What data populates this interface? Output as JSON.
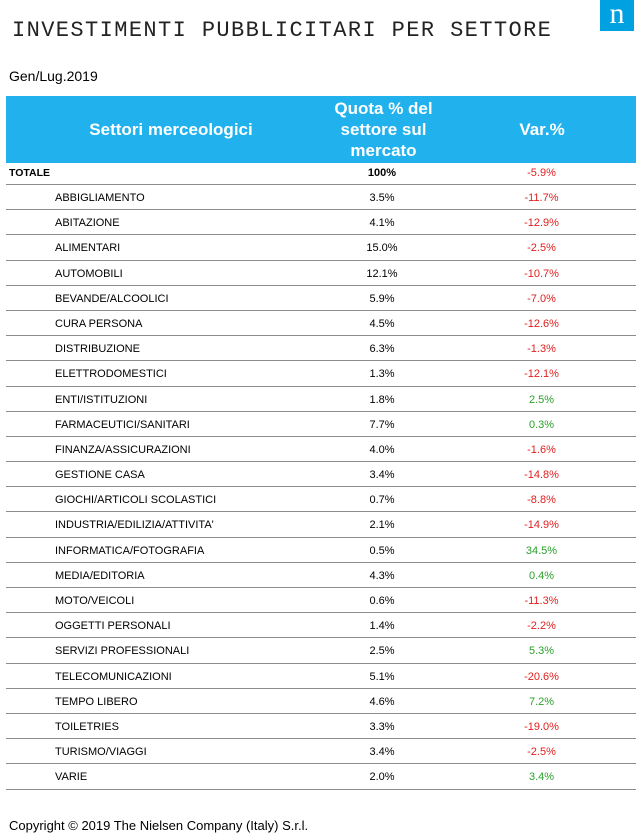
{
  "title": "INVESTIMENTI PUBBLICITARI PER SETTORE",
  "logo_text": "n",
  "period": "Gen/Lug.2019",
  "colors": {
    "header_bg": "#21b2ee",
    "negative": "#e02020",
    "positive": "#2aa02a",
    "logo_bg": "#00a1e0"
  },
  "table": {
    "headers": {
      "sector": "Settori merceologici",
      "share": "Quota % del settore sul mercato",
      "var": "Var.%"
    },
    "total": {
      "name": "TOTALE",
      "share": "100%",
      "var": "-5.9%"
    },
    "rows": [
      {
        "name": "ABBIGLIAMENTO",
        "share": "3.5%",
        "var": "-11.7%"
      },
      {
        "name": "ABITAZIONE",
        "share": "4.1%",
        "var": "-12.9%"
      },
      {
        "name": "ALIMENTARI",
        "share": "15.0%",
        "var": "-2.5%"
      },
      {
        "name": "AUTOMOBILI",
        "share": "12.1%",
        "var": "-10.7%"
      },
      {
        "name": "BEVANDE/ALCOOLICI",
        "share": "5.9%",
        "var": "-7.0%"
      },
      {
        "name": "CURA PERSONA",
        "share": "4.5%",
        "var": "-12.6%"
      },
      {
        "name": "DISTRIBUZIONE",
        "share": "6.3%",
        "var": "-1.3%"
      },
      {
        "name": "ELETTRODOMESTICI",
        "share": "1.3%",
        "var": "-12.1%"
      },
      {
        "name": "ENTI/ISTITUZIONI",
        "share": "1.8%",
        "var": "2.5%"
      },
      {
        "name": "FARMACEUTICI/SANITARI",
        "share": "7.7%",
        "var": "0.3%"
      },
      {
        "name": "FINANZA/ASSICURAZIONI",
        "share": "4.0%",
        "var": "-1.6%"
      },
      {
        "name": "GESTIONE CASA",
        "share": "3.4%",
        "var": "-14.8%"
      },
      {
        "name": "GIOCHI/ARTICOLI SCOLASTICI",
        "share": "0.7%",
        "var": "-8.8%"
      },
      {
        "name": "INDUSTRIA/EDILIZIA/ATTIVITA'",
        "share": "2.1%",
        "var": "-14.9%"
      },
      {
        "name": "INFORMATICA/FOTOGRAFIA",
        "share": "0.5%",
        "var": "34.5%"
      },
      {
        "name": "MEDIA/EDITORIA",
        "share": "4.3%",
        "var": "0.4%"
      },
      {
        "name": "MOTO/VEICOLI",
        "share": "0.6%",
        "var": "-11.3%"
      },
      {
        "name": "OGGETTI PERSONALI",
        "share": "1.4%",
        "var": "-2.2%"
      },
      {
        "name": "SERVIZI PROFESSIONALI",
        "share": "2.5%",
        "var": "5.3%"
      },
      {
        "name": "TELECOMUNICAZIONI",
        "share": "5.1%",
        "var": "-20.6%"
      },
      {
        "name": "TEMPO LIBERO",
        "share": "4.6%",
        "var": "7.2%"
      },
      {
        "name": "TOILETRIES",
        "share": "3.3%",
        "var": "-19.0%"
      },
      {
        "name": "TURISMO/VIAGGI",
        "share": "3.4%",
        "var": "-2.5%"
      },
      {
        "name": "VARIE",
        "share": "2.0%",
        "var": "3.4%"
      }
    ]
  },
  "copyright": "Copyright © 2019 The Nielsen Company (Italy) S.r.l."
}
